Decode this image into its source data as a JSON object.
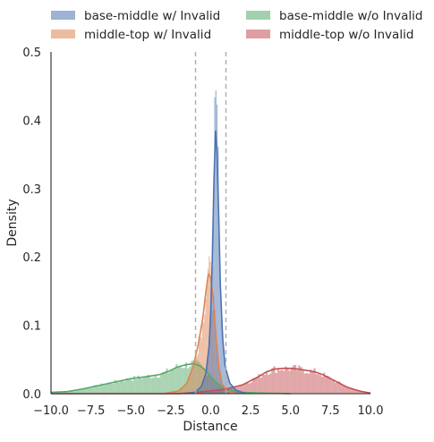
{
  "chart_data": {
    "type": "histogram",
    "xlabel": "Distance",
    "ylabel": "Density",
    "xlim": [
      -10,
      10
    ],
    "ylim": [
      0,
      0.5
    ],
    "xticks": [
      -10,
      -7.5,
      -5,
      -2.5,
      0,
      2.5,
      5,
      7.5,
      10
    ],
    "yticks": [
      0,
      0.1,
      0.2,
      0.3,
      0.4,
      0.5
    ],
    "x_tick_labels": [
      "−10.0",
      "−7.5",
      "−5.0",
      "−2.5",
      "0.0",
      "2.5",
      "5.0",
      "7.5",
      "10.0"
    ],
    "y_tick_labels": [
      "0.0",
      "0.1",
      "0.2",
      "0.3",
      "0.4",
      "0.5"
    ],
    "grid": false,
    "legend_position": "top",
    "reference_lines": [
      -0.95,
      0.95
    ],
    "series": [
      {
        "name": "base-middle w/ Invalid",
        "color": "#4c72b0",
        "density_curve": [
          [
            -1.6,
            0.0
          ],
          [
            -1.0,
            0.002
          ],
          [
            -0.6,
            0.01
          ],
          [
            -0.3,
            0.03
          ],
          [
            -0.1,
            0.07
          ],
          [
            0.0,
            0.12
          ],
          [
            0.1,
            0.2
          ],
          [
            0.2,
            0.31
          ],
          [
            0.3,
            0.385
          ],
          [
            0.4,
            0.35
          ],
          [
            0.5,
            0.26
          ],
          [
            0.6,
            0.16
          ],
          [
            0.75,
            0.08
          ],
          [
            0.9,
            0.04
          ],
          [
            1.2,
            0.015
          ],
          [
            1.6,
            0.005
          ],
          [
            2.2,
            0.0
          ]
        ],
        "histogram_peak": 0.48
      },
      {
        "name": "middle-top w/ Invalid",
        "color": "#dd8452",
        "density_curve": [
          [
            -3.0,
            0.0
          ],
          [
            -2.0,
            0.004
          ],
          [
            -1.5,
            0.015
          ],
          [
            -1.1,
            0.04
          ],
          [
            -0.8,
            0.07
          ],
          [
            -0.5,
            0.11
          ],
          [
            -0.3,
            0.15
          ],
          [
            -0.15,
            0.175
          ],
          [
            0.0,
            0.17
          ],
          [
            0.15,
            0.14
          ],
          [
            0.3,
            0.09
          ],
          [
            0.5,
            0.04
          ],
          [
            0.7,
            0.015
          ],
          [
            1.0,
            0.004
          ],
          [
            1.6,
            0.0
          ]
        ],
        "histogram_peak": 0.18
      },
      {
        "name": "base-middle w/o Invalid",
        "color": "#55a868",
        "density_curve": [
          [
            -10,
            0.002
          ],
          [
            -9,
            0.003
          ],
          [
            -8,
            0.007
          ],
          [
            -7,
            0.012
          ],
          [
            -6,
            0.017
          ],
          [
            -5,
            0.022
          ],
          [
            -4,
            0.025
          ],
          [
            -3.2,
            0.028
          ],
          [
            -2.6,
            0.033
          ],
          [
            -2.1,
            0.039
          ],
          [
            -1.6,
            0.042
          ],
          [
            -1.1,
            0.044
          ],
          [
            -0.7,
            0.041
          ],
          [
            -0.3,
            0.034
          ],
          [
            0.0,
            0.025
          ],
          [
            0.3,
            0.017
          ],
          [
            0.7,
            0.01
          ],
          [
            1.2,
            0.005
          ],
          [
            2.0,
            0.002
          ],
          [
            3.0,
            0.001
          ],
          [
            5.0,
            0.0
          ]
        ],
        "histogram_peak": 0.046
      },
      {
        "name": "middle-top w/o Invalid",
        "color": "#c44e52",
        "density_curve": [
          [
            -10,
            0.0
          ],
          [
            -2,
            0.0
          ],
          [
            -1,
            0.002
          ],
          [
            0,
            0.004
          ],
          [
            1.0,
            0.007
          ],
          [
            2.0,
            0.013
          ],
          [
            3.0,
            0.025
          ],
          [
            3.5,
            0.032
          ],
          [
            4.0,
            0.036
          ],
          [
            4.5,
            0.037
          ],
          [
            5.0,
            0.037
          ],
          [
            5.5,
            0.036
          ],
          [
            6.0,
            0.034
          ],
          [
            6.5,
            0.032
          ],
          [
            7.0,
            0.028
          ],
          [
            7.5,
            0.022
          ],
          [
            8.0,
            0.016
          ],
          [
            8.5,
            0.01
          ],
          [
            9.0,
            0.006
          ],
          [
            9.5,
            0.003
          ],
          [
            10,
            0.001
          ]
        ],
        "histogram_peak": 0.042
      }
    ]
  }
}
